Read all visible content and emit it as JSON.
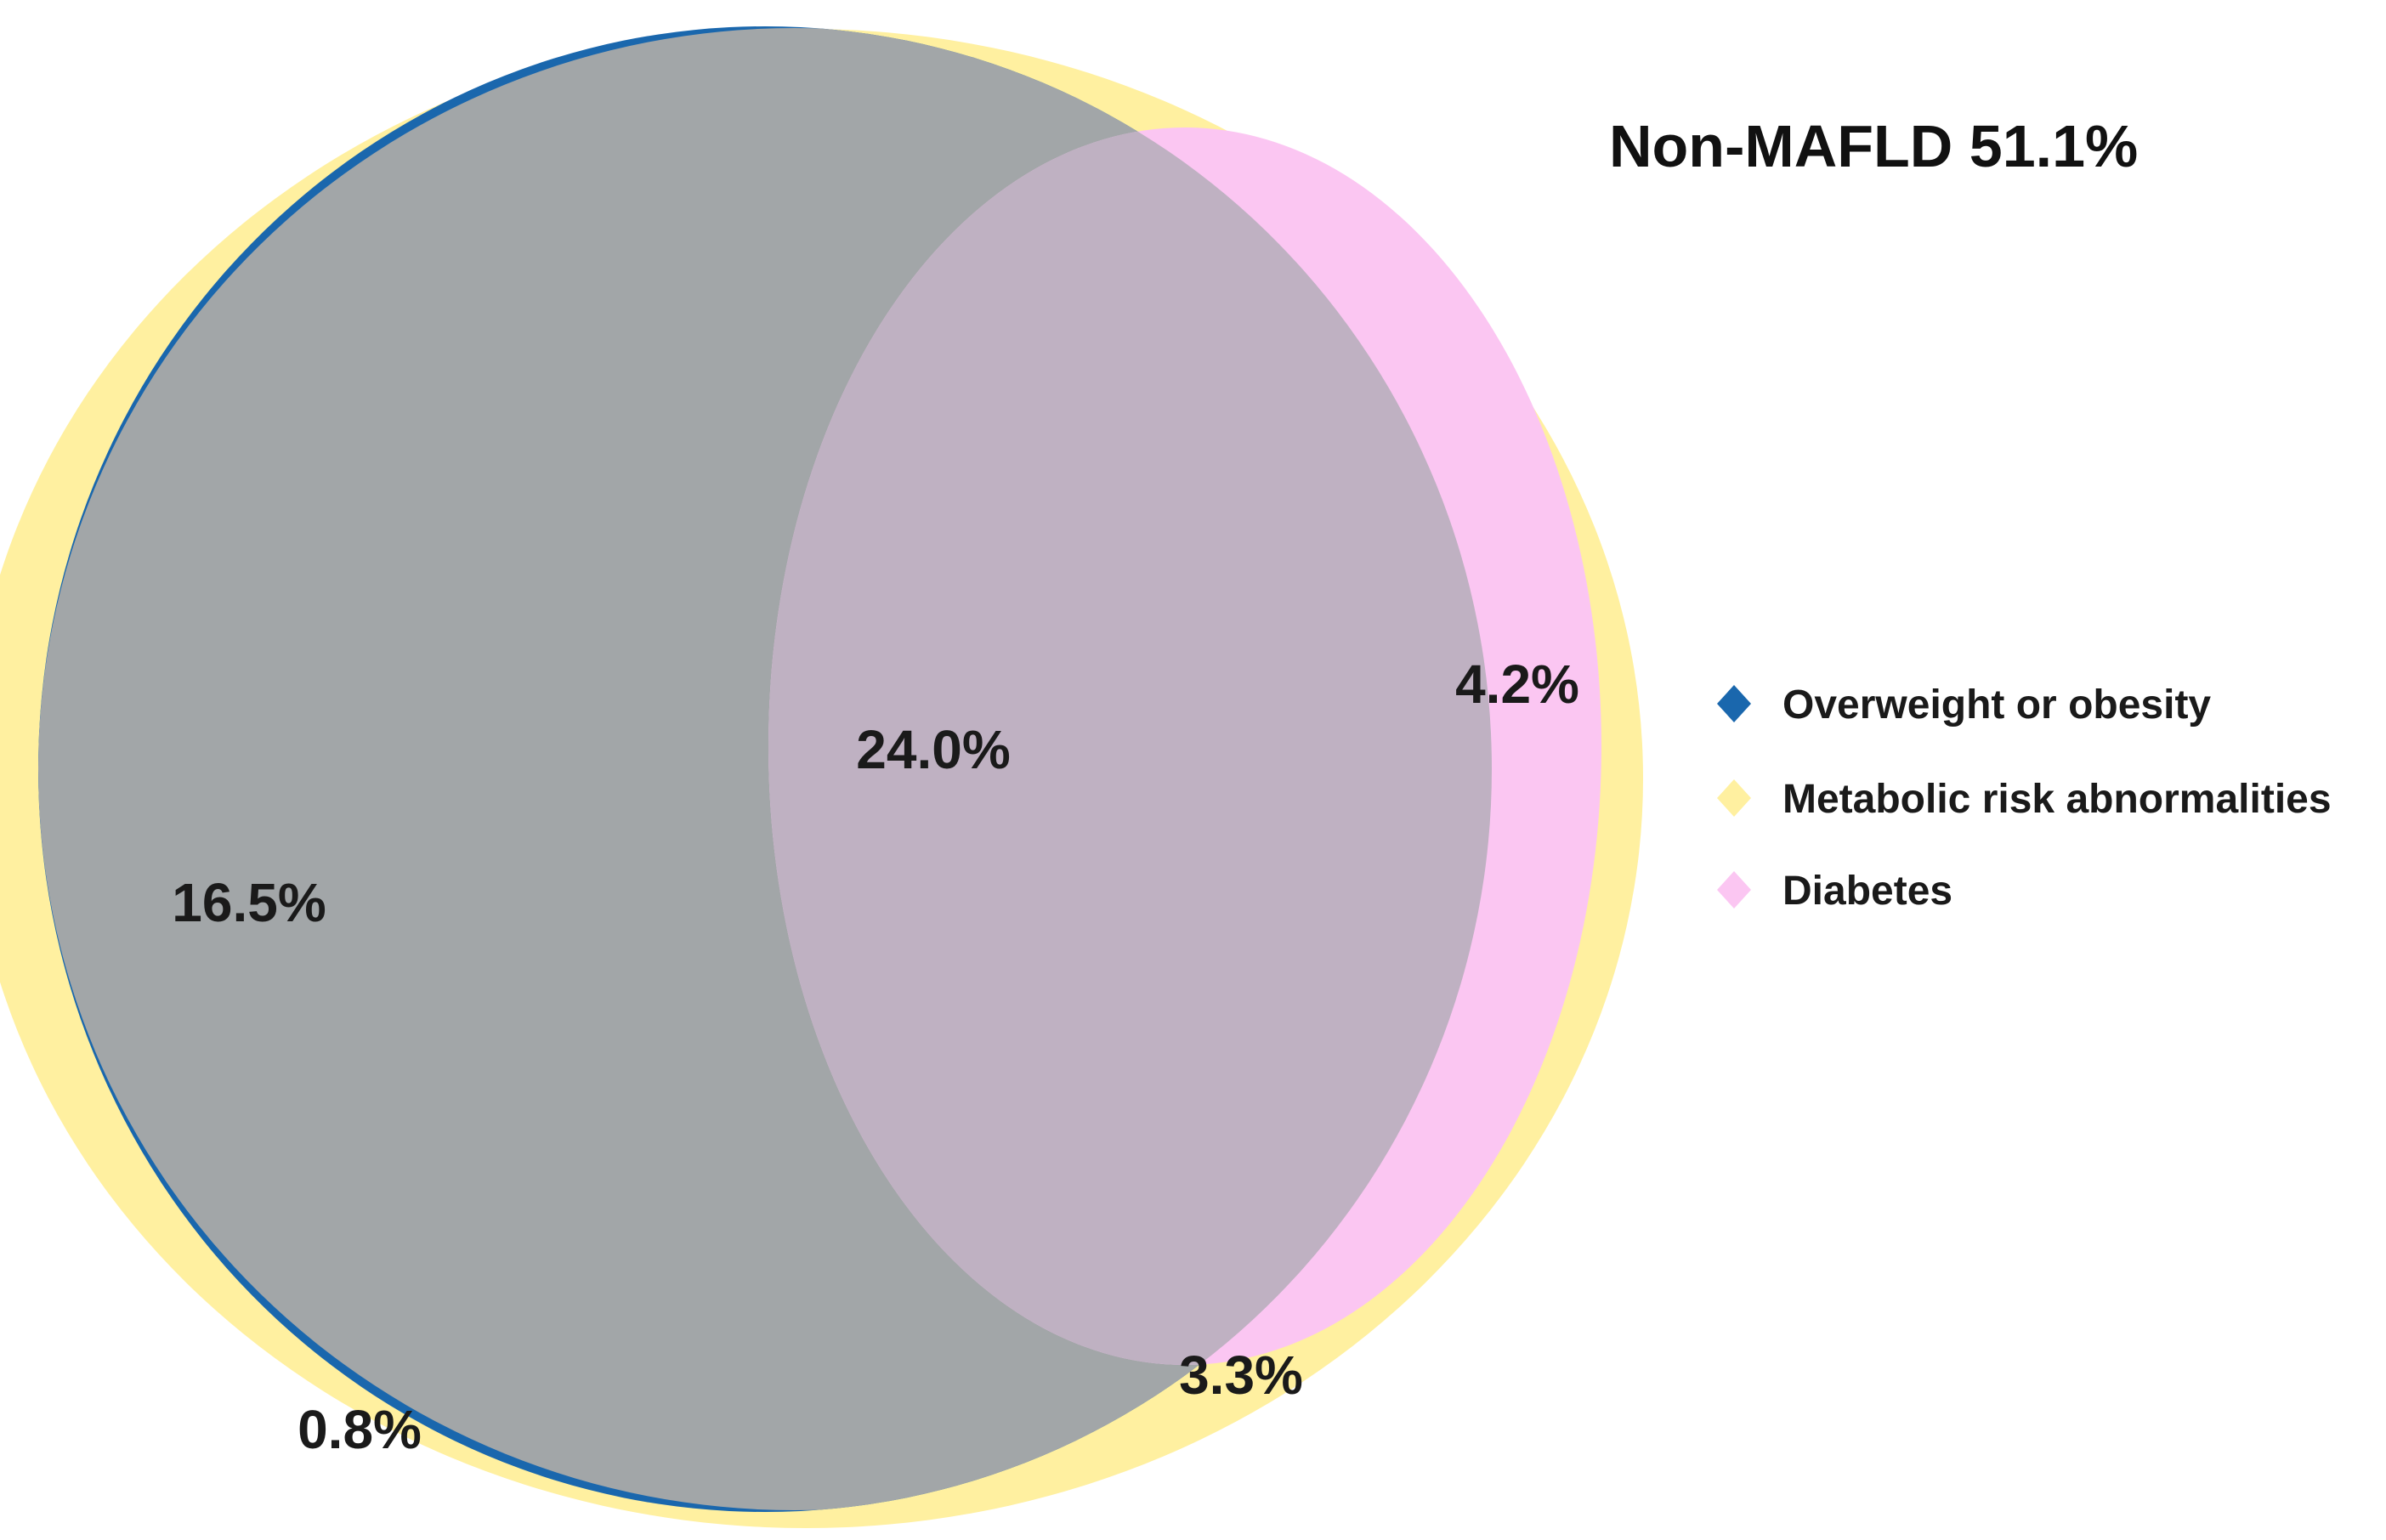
{
  "title": "Non-MAFLD 51.1%",
  "colors": {
    "overweight": "#1a67ad",
    "metabolic": "#fff0a0",
    "diabetes": "#fbc6f2",
    "overweight_metabolic": "#a2a6a8",
    "all_three": "#bfb1c2"
  },
  "chart_data": {
    "type": "venn",
    "sets": [
      {
        "name": "Overweight or obesity",
        "color": "#1a67ad",
        "icon": "diamond"
      },
      {
        "name": "Metabolic risk abnormalities",
        "color": "#fff0a0",
        "icon": "diamond"
      },
      {
        "name": "Diabetes",
        "color": "#fbc6f2",
        "icon": "diamond"
      }
    ],
    "regions": [
      {
        "sets": [
          "Overweight or obesity"
        ],
        "label": "0.8%",
        "value": 0.8
      },
      {
        "sets": [
          "Overweight or obesity",
          "Metabolic risk abnormalities"
        ],
        "label": "16.5%",
        "value": 16.5
      },
      {
        "sets": [
          "Overweight or obesity",
          "Metabolic risk abnormalities",
          "Diabetes"
        ],
        "label": "24.0%",
        "value": 24.0
      },
      {
        "sets": [
          "Metabolic risk abnormalities",
          "Diabetes"
        ],
        "label": "4.2%",
        "value": 4.2
      },
      {
        "sets": [
          "Metabolic risk abnormalities"
        ],
        "label": "3.3%",
        "value": 3.3
      }
    ],
    "legend_position": "right"
  }
}
